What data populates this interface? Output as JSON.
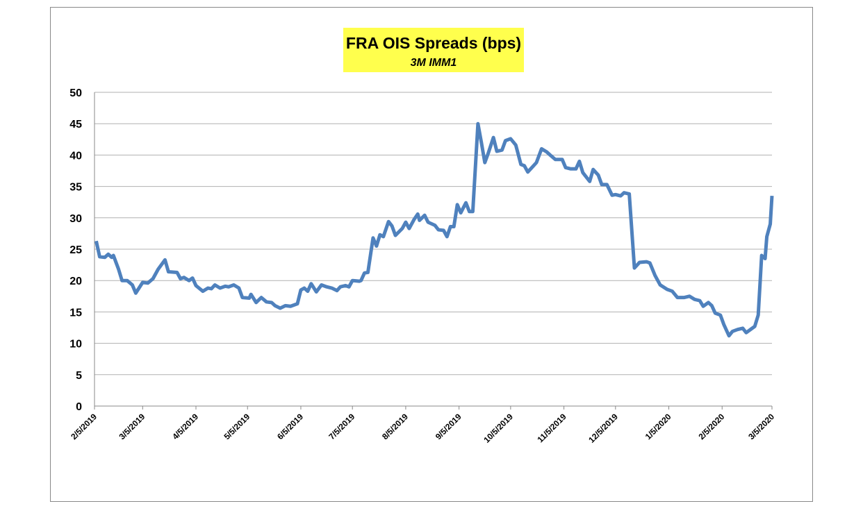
{
  "chart_data": {
    "type": "line",
    "title": "FRA OIS Spreads (bps)",
    "subtitle": "3M IMM1",
    "x": [
      "2019-02-06",
      "2019-02-08",
      "2019-02-11",
      "2019-02-13",
      "2019-02-15",
      "2019-02-16",
      "2019-02-19",
      "2019-02-21",
      "2019-02-24",
      "2019-02-27",
      "2019-03-01",
      "2019-03-05",
      "2019-03-08",
      "2019-03-11",
      "2019-03-14",
      "2019-03-18",
      "2019-03-20",
      "2019-03-25",
      "2019-03-27",
      "2019-03-29",
      "2019-04-01",
      "2019-04-03",
      "2019-04-05",
      "2019-04-09",
      "2019-04-12",
      "2019-04-14",
      "2019-04-16",
      "2019-04-19",
      "2019-04-22",
      "2019-04-24",
      "2019-04-27",
      "2019-04-30",
      "2019-05-02",
      "2019-05-06",
      "2019-05-07",
      "2019-05-10",
      "2019-05-13",
      "2019-05-16",
      "2019-05-19",
      "2019-05-21",
      "2019-05-24",
      "2019-05-27",
      "2019-05-30",
      "2019-06-03",
      "2019-06-05",
      "2019-06-07",
      "2019-06-09",
      "2019-06-11",
      "2019-06-14",
      "2019-06-17",
      "2019-06-20",
      "2019-06-23",
      "2019-06-26",
      "2019-06-28",
      "2019-07-01",
      "2019-07-03",
      "2019-07-05",
      "2019-07-09",
      "2019-07-10",
      "2019-07-12",
      "2019-07-14",
      "2019-07-17",
      "2019-07-19",
      "2019-07-21",
      "2019-07-23",
      "2019-07-26",
      "2019-07-28",
      "2019-07-30",
      "2019-08-03",
      "2019-08-05",
      "2019-08-07",
      "2019-08-10",
      "2019-08-12",
      "2019-08-13",
      "2019-08-16",
      "2019-08-18",
      "2019-08-22",
      "2019-08-24",
      "2019-08-27",
      "2019-08-29",
      "2019-08-31",
      "2019-09-02",
      "2019-09-04",
      "2019-09-06",
      "2019-09-09",
      "2019-09-11",
      "2019-09-13",
      "2019-09-16",
      "2019-09-18",
      "2019-09-20",
      "2019-09-22",
      "2019-09-25",
      "2019-09-27",
      "2019-09-30",
      "2019-10-02",
      "2019-10-05",
      "2019-10-08",
      "2019-10-11",
      "2019-10-13",
      "2019-10-15",
      "2019-10-18",
      "2019-10-20",
      "2019-10-23",
      "2019-10-26",
      "2019-10-28",
      "2019-10-31",
      "2019-11-04",
      "2019-11-06",
      "2019-11-09",
      "2019-11-12",
      "2019-11-14",
      "2019-11-16",
      "2019-11-20",
      "2019-11-22",
      "2019-11-25",
      "2019-11-27",
      "2019-11-30",
      "2019-12-03",
      "2019-12-05",
      "2019-12-08",
      "2019-12-10",
      "2019-12-13",
      "2019-12-16",
      "2019-12-19",
      "2019-12-23",
      "2019-12-25",
      "2019-12-28",
      "2019-12-31",
      "2020-01-04",
      "2020-01-07",
      "2020-01-10",
      "2020-01-14",
      "2020-01-17",
      "2020-01-20",
      "2020-01-23",
      "2020-01-25",
      "2020-01-28",
      "2020-01-30",
      "2020-02-01",
      "2020-02-04",
      "2020-02-06",
      "2020-02-09",
      "2020-02-11",
      "2020-02-14",
      "2020-02-17",
      "2020-02-19",
      "2020-02-22",
      "2020-02-24",
      "2020-02-26",
      "2020-02-28",
      "2020-03-01",
      "2020-03-02",
      "2020-03-04",
      "2020-03-05"
    ],
    "series": [
      {
        "name": "3M IMM1",
        "color": "#4f81bd",
        "values": [
          26.3,
          23.8,
          23.7,
          24.2,
          23.7,
          24.0,
          21.8,
          20.0,
          20.0,
          19.3,
          18.0,
          19.7,
          19.6,
          20.3,
          21.8,
          23.3,
          21.4,
          21.3,
          20.3,
          20.5,
          20.0,
          20.4,
          19.2,
          18.3,
          18.8,
          18.7,
          19.3,
          18.8,
          19.1,
          19.0,
          19.3,
          18.8,
          17.3,
          17.2,
          17.8,
          16.5,
          17.3,
          16.6,
          16.5,
          16.0,
          15.6,
          16.0,
          15.9,
          16.3,
          18.5,
          18.8,
          18.3,
          19.5,
          18.2,
          19.3,
          19.0,
          18.8,
          18.4,
          19.0,
          19.2,
          19.0,
          20.0,
          19.9,
          20.0,
          21.2,
          21.3,
          26.8,
          25.5,
          27.3,
          27.0,
          29.4,
          28.7,
          27.2,
          28.3,
          29.3,
          28.3,
          29.8,
          30.6,
          29.6,
          30.4,
          29.3,
          28.8,
          28.1,
          28.0,
          27.0,
          28.6,
          28.6,
          32.1,
          30.8,
          32.4,
          31.0,
          31.0,
          45.0,
          42.0,
          38.8,
          40.3,
          42.8,
          40.6,
          40.8,
          42.3,
          42.6,
          41.6,
          38.5,
          38.3,
          37.3,
          38.2,
          38.8,
          41.0,
          40.5,
          40.0,
          39.3,
          39.3,
          38.0,
          37.8,
          37.8,
          39.0,
          37.2,
          35.8,
          37.7,
          36.8,
          35.3,
          35.3,
          33.6,
          33.7,
          33.5,
          34.0,
          33.8,
          22.0,
          22.9,
          23.0,
          22.8,
          20.8,
          19.3,
          18.6,
          18.3,
          17.3,
          17.3,
          17.5,
          17.0,
          16.8,
          15.9,
          16.5,
          16.0,
          14.8,
          14.5,
          13.0,
          11.2,
          11.9,
          12.2,
          12.4,
          11.7,
          12.3,
          12.7,
          14.5,
          24.0,
          23.5,
          27.0,
          29.0,
          33.5
        ]
      }
    ],
    "xlim": [
      "2019-02-05",
      "2020-03-05"
    ],
    "xticks": [
      {
        "value": "2019-02-05",
        "label": "2/5/2019"
      },
      {
        "value": "2019-03-05",
        "label": "3/5/2019"
      },
      {
        "value": "2019-04-05",
        "label": "4/5/2019"
      },
      {
        "value": "2019-05-05",
        "label": "5/5/2019"
      },
      {
        "value": "2019-06-05",
        "label": "6/5/2019"
      },
      {
        "value": "2019-07-05",
        "label": "7/5/2019"
      },
      {
        "value": "2019-08-05",
        "label": "8/5/2019"
      },
      {
        "value": "2019-09-05",
        "label": "9/5/2019"
      },
      {
        "value": "2019-10-05",
        "label": "10/5/2019"
      },
      {
        "value": "2019-11-05",
        "label": "11/5/2019"
      },
      {
        "value": "2019-12-05",
        "label": "12/5/2019"
      },
      {
        "value": "2020-01-05",
        "label": "1/5/2020"
      },
      {
        "value": "2020-02-05",
        "label": "2/5/2020"
      },
      {
        "value": "2020-03-05",
        "label": "3/5/2020"
      }
    ],
    "ylim": [
      0,
      50
    ],
    "yticks": [
      0,
      5,
      10,
      15,
      20,
      25,
      30,
      35,
      40,
      45,
      50
    ],
    "grid": true
  }
}
